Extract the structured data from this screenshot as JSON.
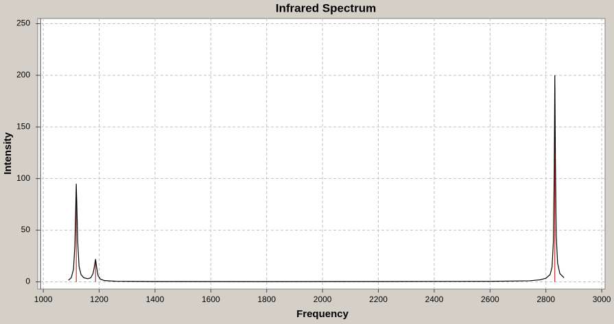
{
  "chart_data": {
    "type": "line",
    "title": "Infrared Spectrum",
    "x_label": "Frequency",
    "y_label": "Intensity",
    "xlim": [
      980,
      3012
    ],
    "ylim": [
      -7,
      255
    ],
    "xticks": [
      1000,
      1200,
      1400,
      1600,
      1800,
      2000,
      2200,
      2400,
      2600,
      2800,
      3000
    ],
    "yticks": [
      0,
      50,
      100,
      150,
      200,
      250
    ],
    "grid": true,
    "series": [
      {
        "color": "#000000",
        "x": [
          1090,
          1100,
          1108,
          1113,
          1116,
          1118,
          1120,
          1123,
          1128,
          1135,
          1145,
          1160,
          1170,
          1178,
          1183,
          1187,
          1191,
          1196,
          1205,
          1220,
          1260,
          1400,
          1800,
          2200,
          2600,
          2740,
          2780,
          2800,
          2815,
          2822,
          2827,
          2830,
          2832,
          2834,
          2837,
          2842,
          2850,
          2865
        ],
        "values": [
          1.5,
          4,
          12,
          35,
          70,
          95,
          75,
          40,
          15,
          7,
          4,
          3,
          4,
          8,
          15,
          22,
          14,
          6,
          2.5,
          1.2,
          0.6,
          0.3,
          0.2,
          0.3,
          0.5,
          1,
          2,
          3.5,
          7,
          14,
          40,
          110,
          200,
          120,
          45,
          18,
          8,
          4
        ]
      }
    ],
    "sticks": {
      "color": "#c00000",
      "x": [
        1118,
        1187,
        2832
      ],
      "values": [
        90,
        21,
        190
      ]
    }
  }
}
